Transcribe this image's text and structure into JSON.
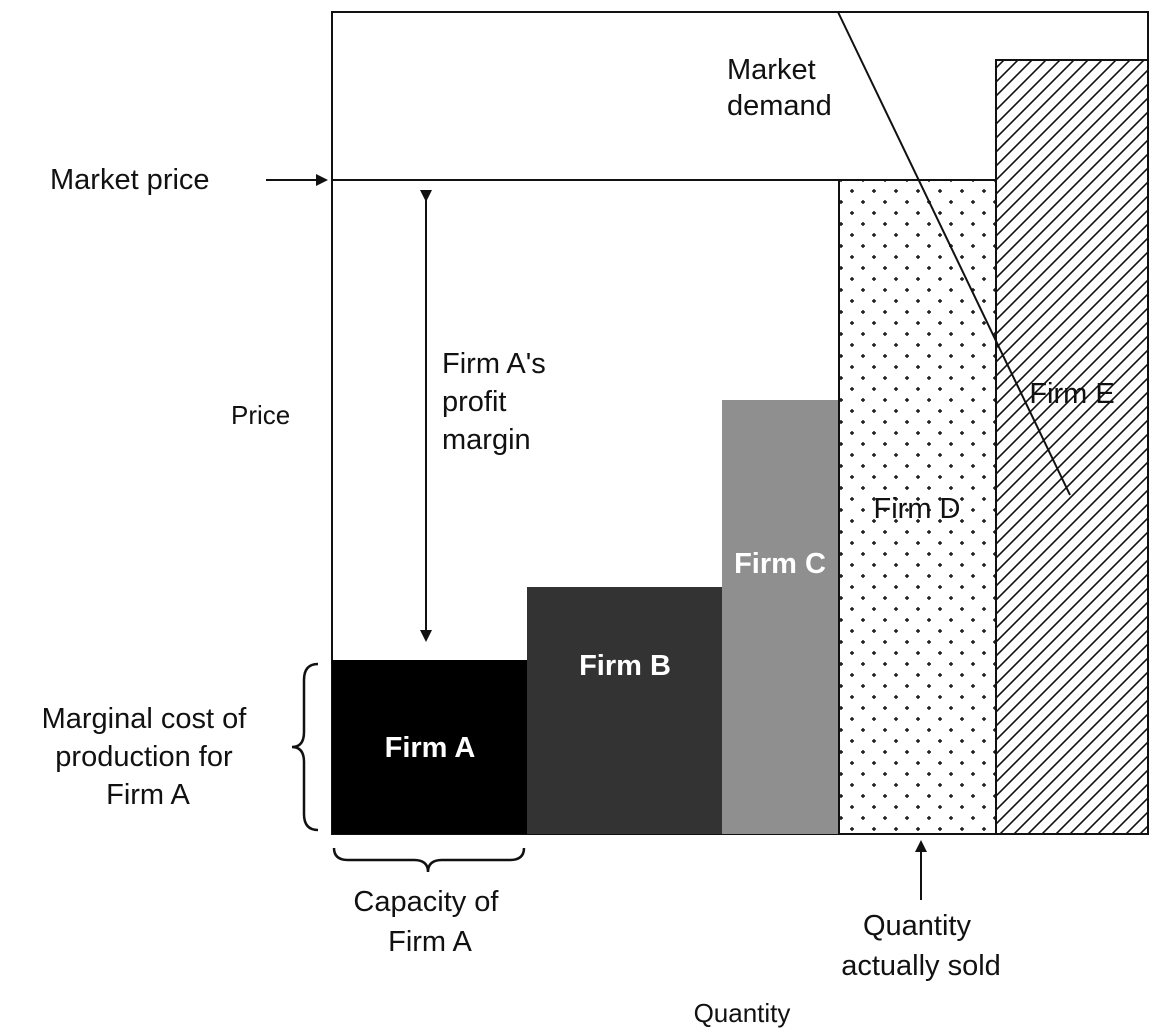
{
  "labels": {
    "market_price": "Market price",
    "market_demand": [
      "Market",
      "demand"
    ],
    "profit_margin": [
      "Firm A's",
      "profit",
      "margin"
    ],
    "price_axis": "Price",
    "quantity_axis": "Quantity",
    "marginal_cost": [
      "Marginal cost of",
      "production for",
      "Firm A"
    ],
    "capacity": [
      "Capacity of",
      "Firm A"
    ],
    "quantity_sold": [
      "Quantity",
      "actually sold"
    ]
  },
  "firms": [
    {
      "name": "Firm A",
      "fill": "solid",
      "color": "#000000",
      "label_color": "#ffffff"
    },
    {
      "name": "Firm B",
      "fill": "solid",
      "color": "#333333",
      "label_color": "#ffffff"
    },
    {
      "name": "Firm C",
      "fill": "solid",
      "color": "#8f8f8f",
      "label_color": "#ffffff"
    },
    {
      "name": "Firm D",
      "fill": "dots",
      "color": "#ffffff",
      "label_color": "#111111"
    },
    {
      "name": "Firm E",
      "fill": "hatch",
      "color": "#ffffff",
      "label_color": "#111111"
    }
  ]
}
